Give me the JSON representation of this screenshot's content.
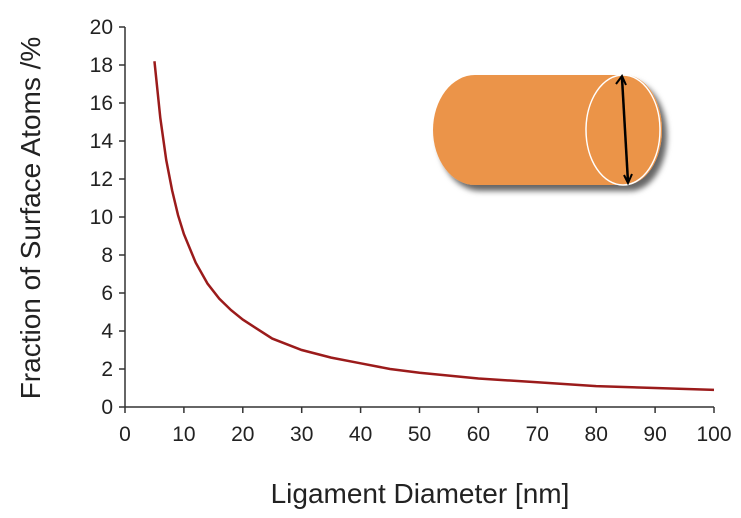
{
  "chart_data": {
    "type": "line",
    "xlabel": "Ligament Diameter [nm]",
    "ylabel": "Fraction of Surface Atoms /%",
    "x": [
      5,
      6,
      7,
      8,
      9,
      10,
      12,
      14,
      16,
      18,
      20,
      25,
      30,
      35,
      40,
      45,
      50,
      60,
      70,
      80,
      90,
      100
    ],
    "series": [
      {
        "name": null,
        "color": "#9b1b1b",
        "values": [
          18.2,
          15.2,
          13.0,
          11.4,
          10.1,
          9.1,
          7.6,
          6.5,
          5.7,
          5.1,
          4.6,
          3.6,
          3.0,
          2.6,
          2.3,
          2.0,
          1.8,
          1.5,
          1.3,
          1.1,
          1.0,
          0.9
        ]
      }
    ],
    "xlim": [
      0,
      100
    ],
    "xticks": [
      0,
      10,
      20,
      30,
      40,
      50,
      60,
      70,
      80,
      90,
      100
    ],
    "ylim": [
      0,
      20
    ],
    "yticks": [
      0,
      2,
      4,
      6,
      8,
      10,
      12,
      14,
      16,
      18,
      20
    ]
  }
}
